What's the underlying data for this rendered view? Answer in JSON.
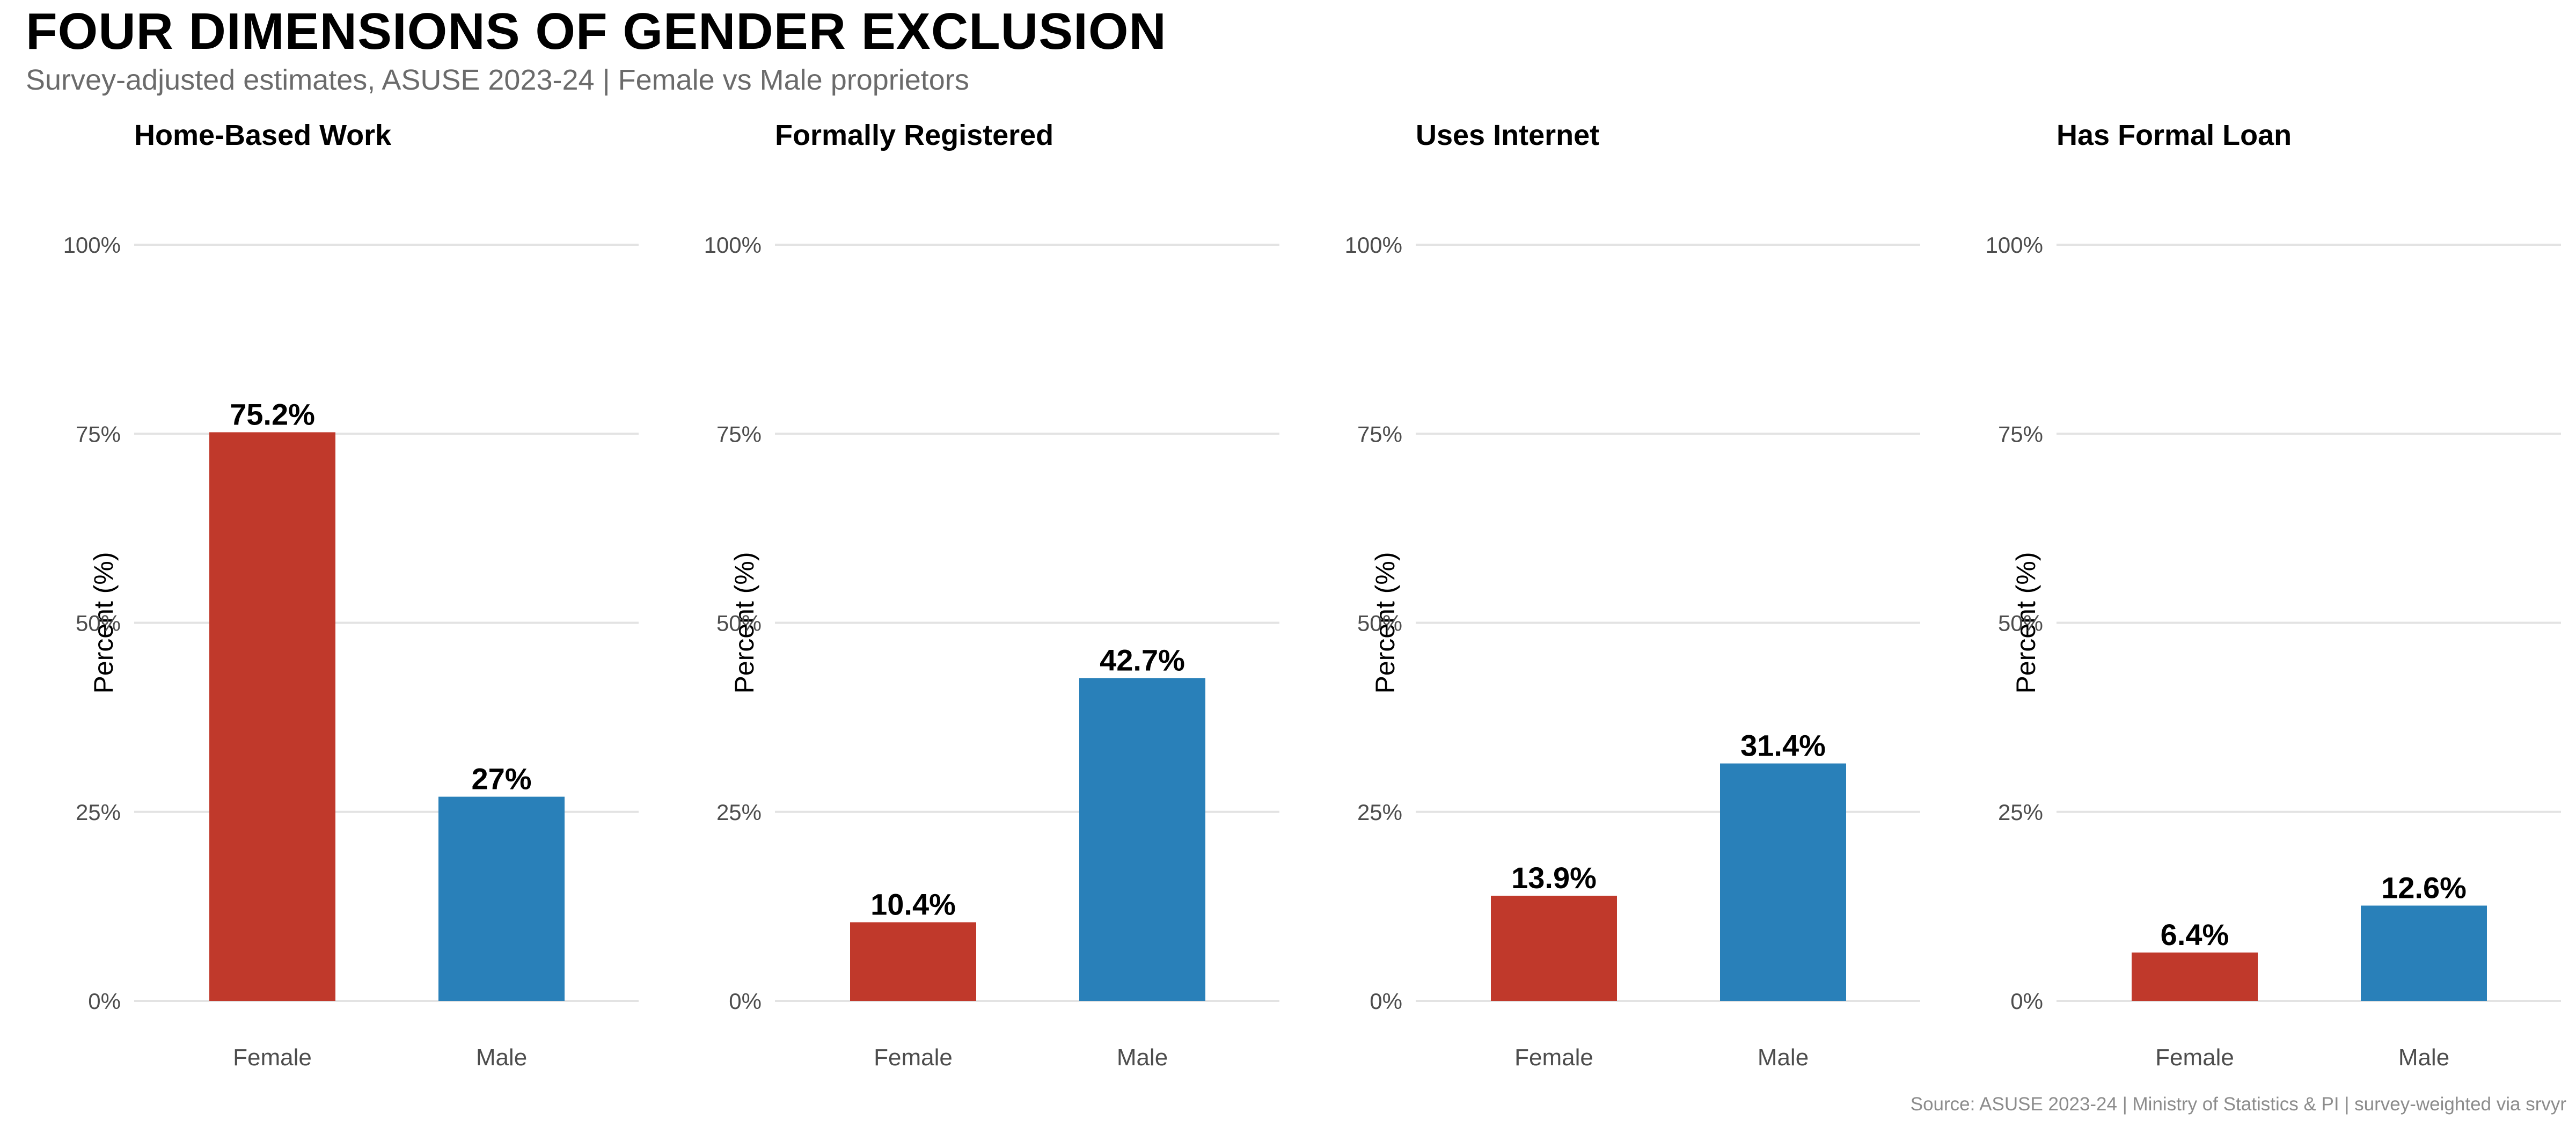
{
  "title": "FOUR DIMENSIONS OF GENDER EXCLUSION",
  "subtitle": "Survey-adjusted estimates, ASUSE 2023-24 | Female vs Male proprietors",
  "caption": "Source: ASUSE 2023-24 | Ministry of Statistics & PI | survey-weighted via srvyr",
  "colors": {
    "female": "#c0392b",
    "male": "#2980b9",
    "grid": "#e3e3e3",
    "tick_text": "#4d4d4d"
  },
  "chart_data": [
    {
      "type": "bar",
      "title": "Home-Based Work",
      "categories": [
        "Female",
        "Male"
      ],
      "values": [
        75.2,
        27
      ],
      "labels": [
        "75.2%",
        "27%"
      ],
      "ylabel": "Percent (%)",
      "ylim": [
        0,
        100
      ],
      "yticks": [
        "0%",
        "25%",
        "50%",
        "75%",
        "100%"
      ],
      "grid": true,
      "legend": "none"
    },
    {
      "type": "bar",
      "title": "Formally Registered",
      "categories": [
        "Female",
        "Male"
      ],
      "values": [
        10.4,
        42.7
      ],
      "labels": [
        "10.4%",
        "42.7%"
      ],
      "ylabel": "Percent (%)",
      "ylim": [
        0,
        100
      ],
      "yticks": [
        "0%",
        "25%",
        "50%",
        "75%",
        "100%"
      ],
      "grid": true,
      "legend": "none"
    },
    {
      "type": "bar",
      "title": "Uses Internet",
      "categories": [
        "Female",
        "Male"
      ],
      "values": [
        13.9,
        31.4
      ],
      "labels": [
        "13.9%",
        "31.4%"
      ],
      "ylabel": "Percent (%)",
      "ylim": [
        0,
        100
      ],
      "yticks": [
        "0%",
        "25%",
        "50%",
        "75%",
        "100%"
      ],
      "grid": true,
      "legend": "none"
    },
    {
      "type": "bar",
      "title": "Has Formal Loan",
      "categories": [
        "Female",
        "Male"
      ],
      "values": [
        6.4,
        12.6
      ],
      "labels": [
        "6.4%",
        "12.6%"
      ],
      "ylabel": "Percent (%)",
      "ylim": [
        0,
        100
      ],
      "yticks": [
        "0%",
        "25%",
        "50%",
        "75%",
        "100%"
      ],
      "grid": true,
      "legend": "none"
    }
  ]
}
